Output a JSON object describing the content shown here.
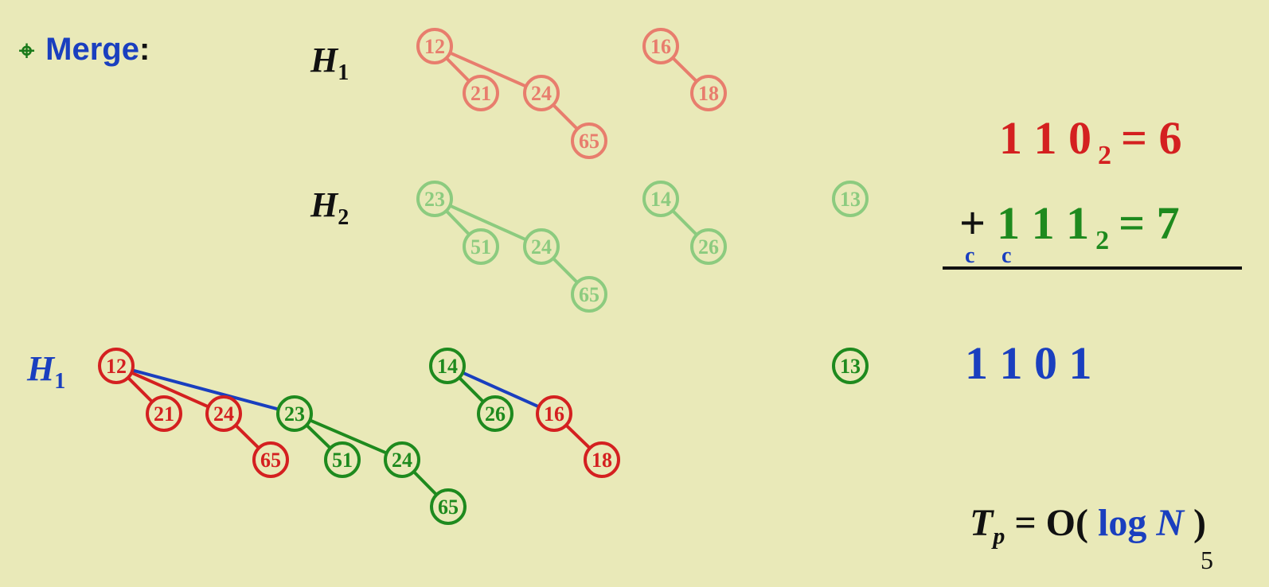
{
  "bullet": {
    "icon": "crosshair-icon",
    "word": "Merge",
    "colon": ":"
  },
  "labels": {
    "h1_top": {
      "letter": "H",
      "sub": "1"
    },
    "h2": {
      "letter": "H",
      "sub": "2"
    },
    "h1_result": {
      "letter": "H",
      "sub": "1"
    }
  },
  "arithmetic": {
    "line1": {
      "digits": "1 1 0",
      "base": "2",
      "result": "= 6"
    },
    "line2": {
      "plus": "+",
      "digits": "1 1 1",
      "base": "2",
      "result": "= 7"
    },
    "carries": [
      "c",
      "c"
    ],
    "sum": "1 1 0 1"
  },
  "complexity": {
    "T": "T",
    "sub": "p",
    "eq": " = O( ",
    "log": "log",
    "N": "N",
    "close": " )"
  },
  "page_number": "5",
  "colors": {
    "background": "#e9e9b8",
    "red": "#d42020",
    "faded_red": "#e87d6d",
    "green": "#1e8a1e",
    "faded_green": "#8ccb7f",
    "blue": "#1a3fbf",
    "black": "#111111"
  },
  "trees": {
    "H1_original": [
      {
        "root": "12",
        "children": [
          "21",
          "24"
        ],
        "grandchildren": {
          "24": [
            "65"
          ]
        }
      },
      {
        "root": "16",
        "children": [
          "18"
        ]
      }
    ],
    "H2_original": [
      {
        "root": "23",
        "children": [
          "51",
          "24"
        ],
        "grandchildren": {
          "24": [
            "65"
          ]
        }
      },
      {
        "root": "14",
        "children": [
          "26"
        ]
      },
      {
        "root": "13",
        "children": []
      }
    ],
    "H1_result": [
      {
        "root": "12",
        "children": [
          "21",
          "24",
          "23"
        ],
        "grandchildren": {
          "24": [
            "65"
          ],
          "23": [
            "51",
            "24"
          ],
          "24b": [
            "65"
          ]
        }
      },
      {
        "root": "14",
        "children": [
          "26",
          "16"
        ],
        "grandchildren": {
          "16": [
            "18"
          ]
        }
      },
      {
        "root": "13",
        "children": []
      }
    ]
  }
}
